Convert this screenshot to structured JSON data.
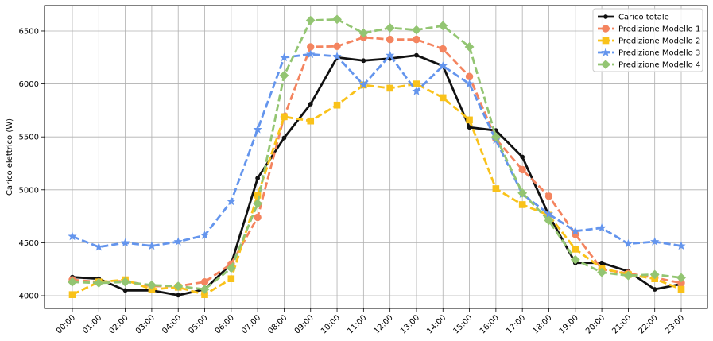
{
  "chart_data": {
    "type": "line",
    "title": "",
    "xlabel": "",
    "ylabel": "Carico elettrico (W)",
    "categories": [
      "00:00",
      "01:00",
      "02:00",
      "03:00",
      "04:00",
      "05:00",
      "06:00",
      "07:00",
      "08:00",
      "09:00",
      "10:00",
      "11:00",
      "12:00",
      "13:00",
      "14:00",
      "15:00",
      "16:00",
      "17:00",
      "18:00",
      "19:00",
      "20:00",
      "21:00",
      "22:00",
      "23:00"
    ],
    "ylim": [
      3880,
      6740
    ],
    "yticks": [
      4000,
      4500,
      5000,
      5500,
      6000,
      6500
    ],
    "grid": true,
    "legend_position": "top-right",
    "series": [
      {
        "name": "Carico totale",
        "color": "#111111",
        "dash": "solid",
        "marker": "dot",
        "values": [
          4175,
          4160,
          4050,
          4050,
          4005,
          4060,
          4300,
          5110,
          5490,
          5810,
          6250,
          6220,
          6240,
          6270,
          6170,
          5590,
          5560,
          5310,
          4760,
          4310,
          4310,
          4230,
          4060,
          4110
        ]
      },
      {
        "name": "Predizione Modello 1",
        "color": "#f4845f",
        "dash": "dashed",
        "marker": "circle",
        "values": [
          4150,
          4130,
          4140,
          4090,
          4090,
          4130,
          4300,
          4740,
          5690,
          6350,
          6355,
          6440,
          6420,
          6420,
          6330,
          6070,
          5480,
          5190,
          4940,
          4580,
          4250,
          4210,
          4170,
          4120
        ]
      },
      {
        "name": "Predizione Modello 2",
        "color": "#f9c21a",
        "dash": "dashed",
        "marker": "square",
        "values": [
          4010,
          4130,
          4150,
          4060,
          4080,
          4010,
          4160,
          4950,
          5690,
          5650,
          5800,
          5990,
          5960,
          6000,
          5870,
          5660,
          5010,
          4860,
          4760,
          4440,
          4260,
          4200,
          4160,
          4060
        ]
      },
      {
        "name": "Predizione Modello 3",
        "color": "#6495ed",
        "dash": "dashed",
        "marker": "star",
        "values": [
          4560,
          4460,
          4500,
          4470,
          4510,
          4570,
          4890,
          5570,
          6250,
          6280,
          6260,
          5990,
          6270,
          5930,
          6170,
          6000,
          5470,
          4960,
          4770,
          4610,
          4640,
          4490,
          4510,
          4470
        ]
      },
      {
        "name": "Predizione Modello 4",
        "color": "#93c572",
        "dash": "dashed",
        "marker": "diamond",
        "values": [
          4130,
          4120,
          4130,
          4100,
          4090,
          4060,
          4260,
          4870,
          6080,
          6600,
          6610,
          6480,
          6530,
          6510,
          6550,
          6350,
          5500,
          4970,
          4710,
          4340,
          4220,
          4190,
          4200,
          4170
        ]
      }
    ]
  }
}
